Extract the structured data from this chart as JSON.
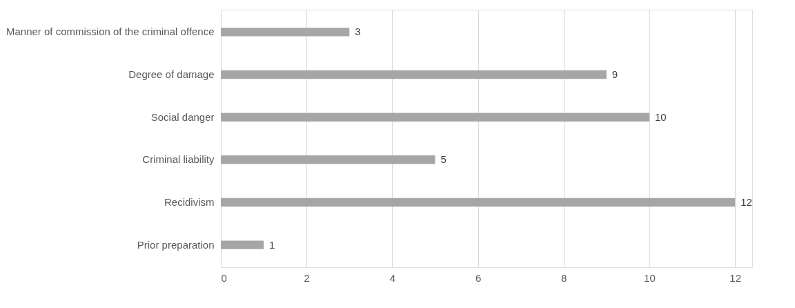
{
  "chart_data": {
    "type": "bar",
    "orientation": "horizontal",
    "categories": [
      "Manner of commission of the criminal offence",
      "Degree of damage",
      "Social danger",
      "Criminal liability",
      "Recidivism",
      "Prior preparation"
    ],
    "values": [
      3,
      9,
      10,
      5,
      12,
      1
    ],
    "color": "#a6a6a6",
    "xlim": [
      0,
      12.4
    ],
    "xticks": [
      0,
      2,
      4,
      6,
      8,
      10,
      12
    ],
    "grid": "x",
    "data_labels": true
  }
}
